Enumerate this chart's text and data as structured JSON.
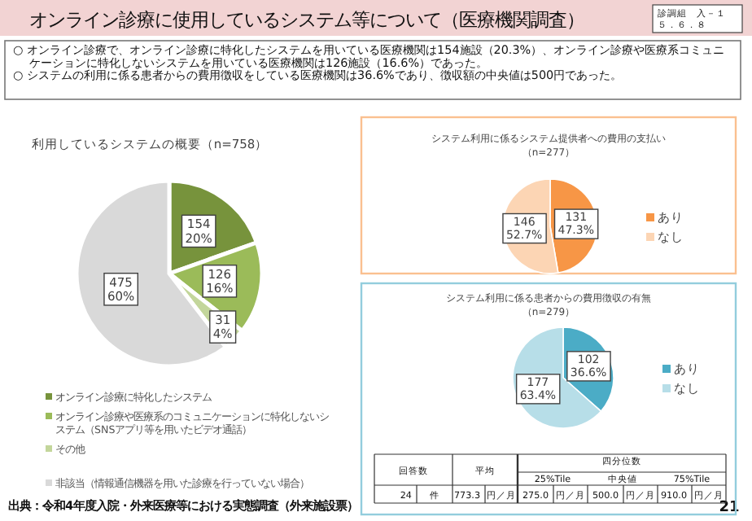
{
  "chart_data": [
    {
      "type": "other",
      "title": "オンライン診療に使用しているシステム等について（医療機関調査）",
      "annotations": [
        "診調組　入－１",
        "５．６．８",
        "○ オンライン診療で、オンライン診療に特化したシステムを用いている医療機関は154施設（20.3%）、オンライン診療や医療系コミュニケーションに特化しないシステムを用いている医療機関は126施設（16.6%）であった。",
        "○ システムの利用に係る患者からの費用徴収をしている医療機関は36.6%であり、徴収額の中央値は500円であった。",
        "出典：令和4年度入院・外来医療等における実態調査（外来施設票）",
        "21"
      ]
    },
    {
      "type": "pie",
      "title": "利用しているシステムの概要（n=758）",
      "categories": [
        "オンライン診療に特化したシステム",
        "オンライン診療や医療系のコミュニケーションに特化しないシステム（SNSアプリ等を用いたビデオ通話）",
        "その他",
        "非該当（情報通信機器を用いた診療を行っていない場合）"
      ],
      "values": [
        154,
        126,
        31,
        475
      ],
      "colors": [
        "#77933c",
        "#9bbb59",
        "#c3d69b",
        "#d9d9d9"
      ],
      "value_labels": [
        "154\n20%",
        "126\n16%",
        "31\n4%",
        "475\n60%"
      ],
      "legend": "bottom"
    },
    {
      "type": "pie",
      "title": "システム利用に係るシステム提供者への費用の支払い",
      "subtitle": "（n=277）",
      "categories": [
        "あり",
        "なし"
      ],
      "values": [
        131,
        146
      ],
      "colors": [
        "#f79646",
        "#fcd5b4"
      ],
      "value_labels": [
        "131\n47.3%",
        "146\n52.7%"
      ],
      "legend": "right"
    },
    {
      "type": "pie",
      "title": "システム利用に係る患者からの費用徴収の有無",
      "subtitle": "（n=279）",
      "categories": [
        "あり",
        "なし"
      ],
      "values": [
        102,
        177
      ],
      "colors": [
        "#4bacc6",
        "#b7dee8"
      ],
      "value_labels": [
        "102\n36.6%",
        "177\n63.4%"
      ],
      "legend": "right"
    },
    {
      "type": "other",
      "annotations": [
        "回答数",
        "平均",
        "四分位数",
        "25%Tile",
        "中央値",
        "75%Tile",
        "24",
        "件",
        "773.3",
        "円／月",
        "275.0",
        "円／月",
        "500.0",
        "円／月",
        "910.0",
        "円／月"
      ]
    }
  ]
}
